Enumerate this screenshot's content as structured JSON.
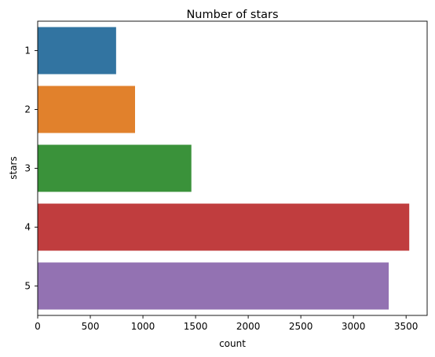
{
  "chart_data": {
    "type": "bar",
    "orientation": "horizontal",
    "title": "Number of stars",
    "xlabel": "count",
    "ylabel": "stars",
    "categories": [
      "1",
      "2",
      "3",
      "4",
      "5"
    ],
    "values": [
      745,
      925,
      1460,
      3530,
      3335
    ],
    "colors": [
      "#3274a1",
      "#e1812c",
      "#3a923a",
      "#c03d3e",
      "#9372b2"
    ],
    "xlim": [
      0,
      3700
    ],
    "xticks": [
      0,
      500,
      1000,
      1500,
      2000,
      2500,
      3000,
      3500
    ],
    "grid": false,
    "legend": "none"
  }
}
